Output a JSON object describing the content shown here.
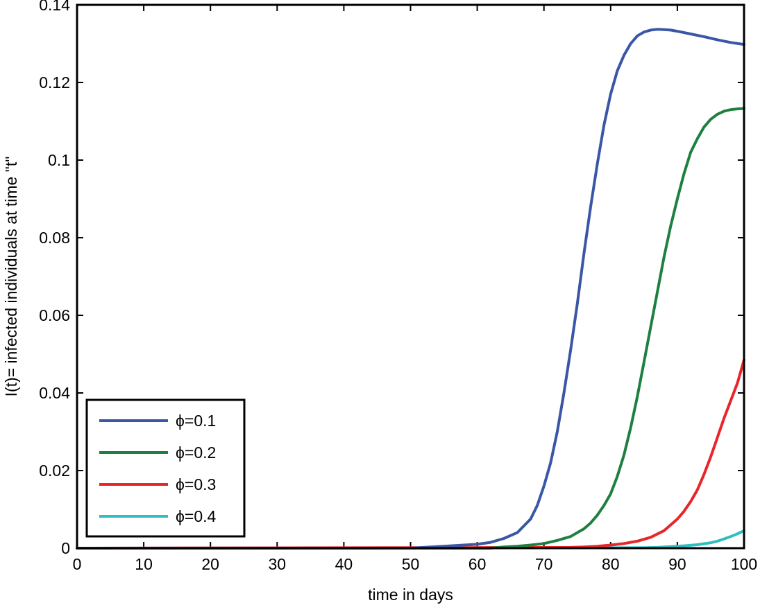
{
  "chart_data": {
    "type": "line",
    "title": "",
    "xlabel": "time in days",
    "ylabel": "I(t)= infected individuals at time \"t\"",
    "xlim": [
      0,
      100
    ],
    "ylim": [
      0,
      0.14
    ],
    "xticks": [
      0,
      10,
      20,
      30,
      40,
      50,
      60,
      70,
      80,
      90,
      100
    ],
    "xtick_labels": [
      "0",
      "10",
      "20",
      "30",
      "40",
      "50",
      "60",
      "70",
      "80",
      "90",
      "100"
    ],
    "yticks": [
      0,
      0.02,
      0.04,
      0.06,
      0.08,
      0.1,
      0.12,
      0.14
    ],
    "ytick_labels": [
      "0",
      "0.02",
      "0.04",
      "0.06",
      "0.08",
      "0.1",
      "0.12",
      "0.14"
    ],
    "grid": false,
    "legend_position": "bottom-left",
    "series": [
      {
        "name": "ϕ=0.1",
        "color": "#3a56a6",
        "x": [
          0,
          50,
          55,
          58,
          60,
          62,
          64,
          66,
          68,
          69,
          70,
          71,
          72,
          73,
          74,
          75,
          76,
          77,
          78,
          79,
          80,
          81,
          82,
          83,
          84,
          85,
          86,
          87,
          88,
          89,
          90,
          92,
          94,
          96,
          98,
          100
        ],
        "y": [
          0,
          0,
          0.0005,
          0.0008,
          0.001,
          0.0015,
          0.0025,
          0.004,
          0.0075,
          0.011,
          0.016,
          0.022,
          0.03,
          0.04,
          0.051,
          0.063,
          0.076,
          0.088,
          0.099,
          0.109,
          0.117,
          0.123,
          0.127,
          0.13,
          0.132,
          0.133,
          0.1335,
          0.1337,
          0.1336,
          0.1335,
          0.1332,
          0.1325,
          0.1318,
          0.131,
          0.1303,
          0.1298
        ]
      },
      {
        "name": "ϕ=0.2",
        "color": "#1e8040",
        "x": [
          0,
          62,
          64,
          66,
          68,
          70,
          72,
          74,
          76,
          77,
          78,
          79,
          80,
          81,
          82,
          83,
          84,
          85,
          86,
          87,
          88,
          89,
          90,
          91,
          92,
          93,
          94,
          95,
          96,
          97,
          98,
          99,
          100
        ],
        "y": [
          0,
          0,
          0.0003,
          0.0005,
          0.0008,
          0.0012,
          0.002,
          0.003,
          0.005,
          0.0065,
          0.0085,
          0.011,
          0.014,
          0.0185,
          0.024,
          0.031,
          0.039,
          0.048,
          0.057,
          0.066,
          0.075,
          0.083,
          0.09,
          0.0965,
          0.102,
          0.1055,
          0.1085,
          0.1105,
          0.1118,
          0.1126,
          0.113,
          0.1132,
          0.1133
        ]
      },
      {
        "name": "ϕ=0.3",
        "color": "#e8262a",
        "x": [
          0,
          74,
          76,
          78,
          80,
          82,
          84,
          86,
          88,
          90,
          91,
          92,
          93,
          94,
          95,
          96,
          97,
          98,
          99,
          100
        ],
        "y": [
          0,
          0.0002,
          0.0003,
          0.0005,
          0.0008,
          0.0012,
          0.0018,
          0.0028,
          0.0045,
          0.0075,
          0.0095,
          0.012,
          0.015,
          0.019,
          0.0235,
          0.0285,
          0.0335,
          0.038,
          0.0425,
          0.0485
        ]
      },
      {
        "name": "ϕ=0.4",
        "color": "#2fbdbf",
        "x": [
          0,
          85,
          87,
          89,
          91,
          93,
          95,
          96,
          97,
          98,
          99,
          100
        ],
        "y": [
          0,
          0.0001,
          0.0002,
          0.0004,
          0.0006,
          0.0009,
          0.0014,
          0.0018,
          0.0024,
          0.003,
          0.0037,
          0.0045
        ]
      }
    ]
  }
}
